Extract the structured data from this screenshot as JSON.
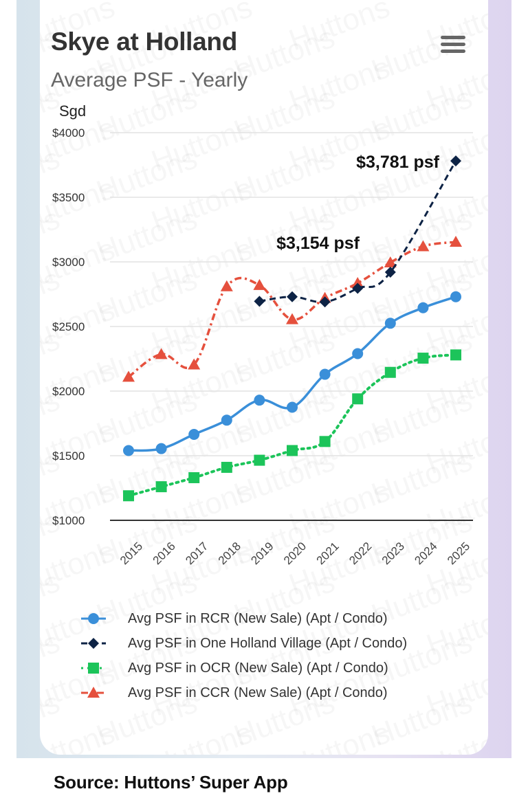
{
  "page": {
    "source": "Source: Huttons’ Super App",
    "watermark": "Huttons"
  },
  "card": {
    "title": "Skye at Holland",
    "subtitle": "Average PSF - Yearly",
    "menu_icon": "hamburger-menu-icon"
  },
  "chart_data": {
    "type": "line",
    "title": "Skye at Holland",
    "subtitle": "Average PSF - Yearly",
    "xlabel": "",
    "ylabel": "Sgd",
    "ylim": [
      1000,
      4000
    ],
    "yticks": [
      1000,
      1500,
      2000,
      2500,
      3000,
      3500,
      4000
    ],
    "ytick_labels": [
      "$1000",
      "$1500",
      "$2000",
      "$2500",
      "$3000",
      "$3500",
      "$4000"
    ],
    "grid": true,
    "legend_position": "bottom",
    "categories": [
      "2015",
      "2016",
      "2017",
      "2018",
      "2019",
      "2020",
      "2021",
      "2022",
      "2023",
      "2024",
      "2025"
    ],
    "series": [
      {
        "name": "Avg PSF in RCR (New Sale) (Apt / Condo)",
        "color": "#3a8fd9",
        "marker": "circle",
        "line_style": "solid",
        "values": [
          1540,
          1555,
          1665,
          1775,
          1930,
          1875,
          2130,
          2290,
          2525,
          2645,
          2730
        ]
      },
      {
        "name": "Avg PSF in One Holland Village (Apt / Condo)",
        "color": "#0d2345",
        "marker": "diamond",
        "line_style": "dashed",
        "values": [
          null,
          null,
          null,
          null,
          2695,
          2730,
          2690,
          2795,
          2920,
          null,
          3781
        ]
      },
      {
        "name": "Avg PSF in OCR (New Sale) (Apt / Condo)",
        "color": "#1cc45a",
        "marker": "square",
        "line_style": "dotted",
        "values": [
          1190,
          1260,
          1330,
          1410,
          1465,
          1540,
          1610,
          1940,
          2145,
          2255,
          2280
        ]
      },
      {
        "name": "Avg PSF in CCR (New Sale) (Apt / Condo)",
        "color": "#e5503d",
        "marker": "triangle",
        "line_style": "dash-dot",
        "values": [
          2110,
          2285,
          2205,
          2810,
          2820,
          2555,
          2720,
          2835,
          2995,
          3120,
          3154
        ]
      }
    ],
    "annotations": [
      {
        "text": "$3,781 psf",
        "series": 1,
        "category": "2025",
        "value": 3781
      },
      {
        "text": "$3,154 psf",
        "series": 3,
        "category": "2025",
        "value": 3154
      }
    ]
  }
}
